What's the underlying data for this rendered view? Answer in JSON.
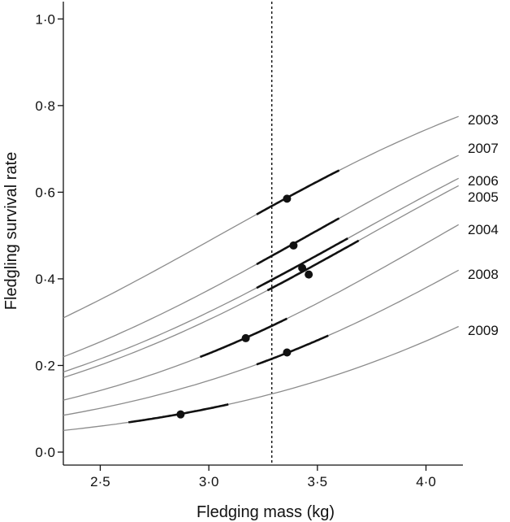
{
  "chart_data": {
    "type": "line",
    "xlabel": "Fledging mass (kg)",
    "ylabel": "Fledgling survival rate",
    "xlim": [
      2.33,
      4.17
    ],
    "ylim": [
      -0.03,
      1.04
    ],
    "xticks": [
      2.5,
      3.0,
      3.5,
      4.0
    ],
    "xtick_labels": [
      "2·5",
      "3·0",
      "3·5",
      "4·0"
    ],
    "yticks": [
      0.0,
      0.2,
      0.4,
      0.6,
      0.8,
      1.0
    ],
    "ytick_labels": [
      "0·0",
      "0·2",
      "0·4",
      "0·6",
      "0·8",
      "1·0"
    ],
    "reference_line_x": 3.29,
    "grid": false,
    "legend": "labels at right end of each curve",
    "colors": {
      "curve": "#8c8c8c",
      "highlight": "#111111",
      "reference": "#111111"
    },
    "series": [
      {
        "name": "2003",
        "x_start": 2.33,
        "y_start": 0.31,
        "x_end": 4.15,
        "y_end": 0.775,
        "hl_from": 3.22,
        "hl_to": 3.6,
        "point": [
          3.36,
          0.585
        ]
      },
      {
        "name": "2007",
        "x_start": 2.33,
        "y_start": 0.22,
        "x_end": 4.15,
        "y_end": 0.685,
        "hl_from": 3.22,
        "hl_to": 3.6,
        "point": [
          3.39,
          0.477
        ]
      },
      {
        "name": "2006",
        "x_start": 2.33,
        "y_start": 0.185,
        "x_end": 4.15,
        "y_end": 0.632,
        "hl_from": 3.22,
        "hl_to": 3.64,
        "point": [
          3.43,
          0.425
        ]
      },
      {
        "name": "2005",
        "x_start": 2.33,
        "y_start": 0.172,
        "x_end": 4.15,
        "y_end": 0.615,
        "hl_from": 3.27,
        "hl_to": 3.69,
        "point": [
          3.46,
          0.41
        ]
      },
      {
        "name": "2004",
        "x_start": 2.33,
        "y_start": 0.12,
        "x_end": 4.15,
        "y_end": 0.525,
        "hl_from": 2.96,
        "hl_to": 3.36,
        "point": [
          3.17,
          0.263
        ]
      },
      {
        "name": "2008",
        "x_start": 2.33,
        "y_start": 0.085,
        "x_end": 4.15,
        "y_end": 0.42,
        "hl_from": 3.22,
        "hl_to": 3.55,
        "point": [
          3.36,
          0.23
        ]
      },
      {
        "name": "2009",
        "x_start": 2.33,
        "y_start": 0.05,
        "x_end": 4.15,
        "y_end": 0.29,
        "hl_from": 2.63,
        "hl_to": 3.09,
        "point": [
          2.87,
          0.087
        ]
      }
    ]
  }
}
